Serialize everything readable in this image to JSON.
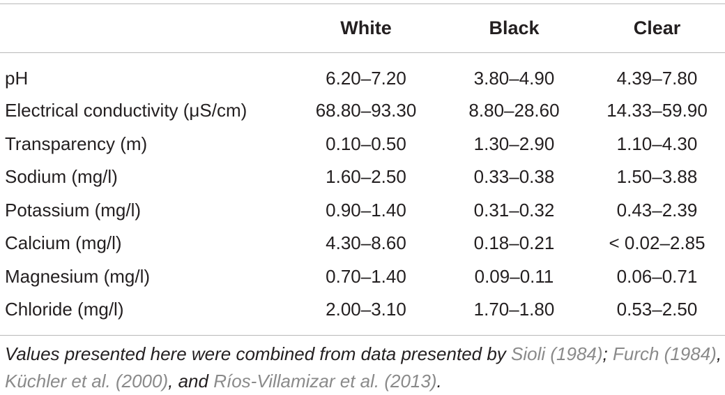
{
  "table": {
    "headers": [
      "",
      "White",
      "Black",
      "Clear"
    ],
    "rows": [
      {
        "param": "pH",
        "white": "6.20–7.20",
        "black": "3.80–4.90",
        "clear": "4.39–7.80"
      },
      {
        "param": "Electrical conductivity (μS/cm)",
        "white": "68.80–93.30",
        "black": "8.80–28.60",
        "clear": "14.33–59.90"
      },
      {
        "param": "Transparency (m)",
        "white": "0.10–0.50",
        "black": "1.30–2.90",
        "clear": "1.10–4.30"
      },
      {
        "param": "Sodium (mg/l)",
        "white": "1.60–2.50",
        "black": "0.33–0.38",
        "clear": "1.50–3.88"
      },
      {
        "param": "Potassium (mg/l)",
        "white": "0.90–1.40",
        "black": "0.31–0.32",
        "clear": "0.43–2.39"
      },
      {
        "param": "Calcium (mg/l)",
        "white": "4.30–8.60",
        "black": "0.18–0.21",
        "clear": "< 0.02–2.85"
      },
      {
        "param": "Magnesium (mg/l)",
        "white": "0.70–1.40",
        "black": "0.09–0.11",
        "clear": "0.06–0.71"
      },
      {
        "param": "Chloride (mg/l)",
        "white": "2.00–3.10",
        "black": "1.70–1.80",
        "clear": "0.53–2.50"
      }
    ]
  },
  "footnote": {
    "lead": "Values presented here were combined from data presented by ",
    "ref1": "Sioli (1984)",
    "sep1": "; ",
    "ref2": "Furch (1984)",
    "sep2": ", ",
    "ref3": "Küchler et al. (2000)",
    "sep3": ", and ",
    "ref4": "Ríos-Villamizar et al. (2013)",
    "end": "."
  },
  "colors": {
    "text": "#231f20",
    "rule": "#b9b9b9",
    "reference_link": "#8a8a8a"
  }
}
